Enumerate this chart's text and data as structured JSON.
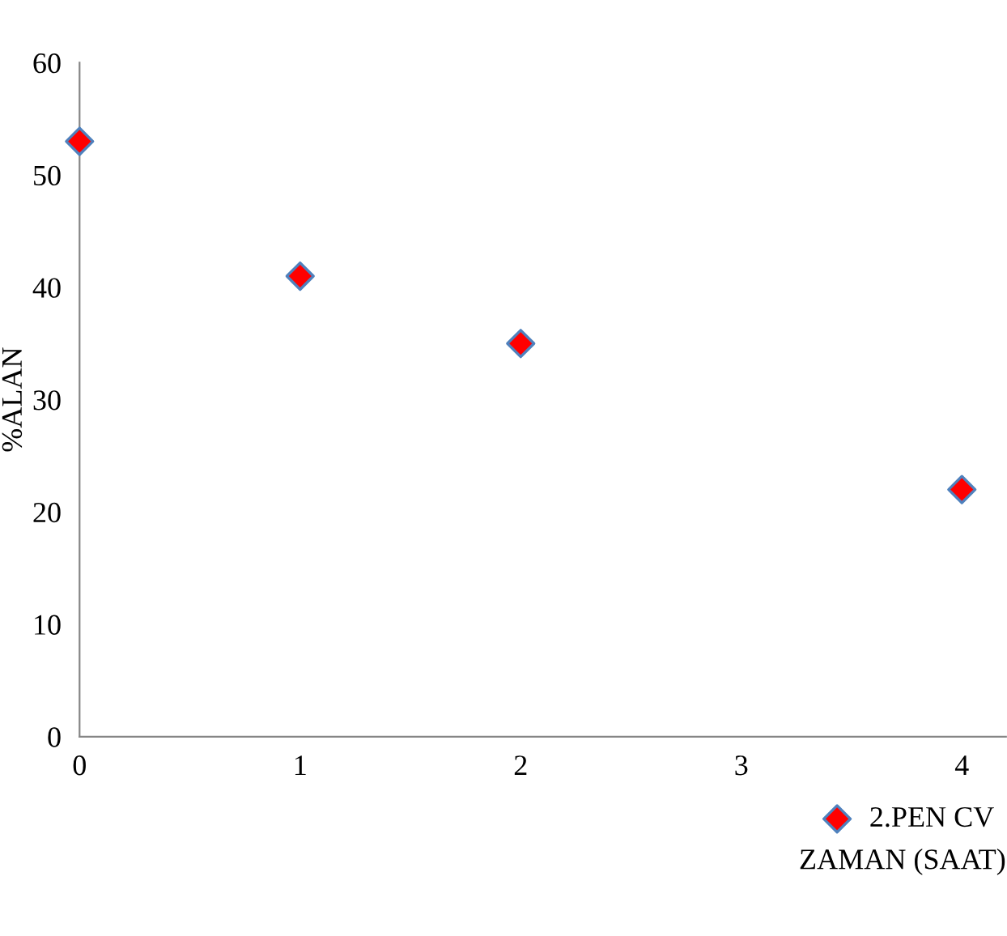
{
  "chart_data": {
    "type": "scatter",
    "xlabel": "ZAMAN (SAAT)",
    "ylabel": "%ALAN",
    "x": [
      0,
      1,
      2,
      4
    ],
    "series": [
      {
        "name": "2.PEN CV",
        "color": "#ff0000",
        "values": [
          53,
          41,
          35,
          22
        ]
      }
    ],
    "xlim": [
      0,
      4.2
    ],
    "ylim": [
      0,
      60
    ],
    "xticks": [
      0,
      1,
      2,
      3,
      4
    ],
    "yticks": [
      0,
      10,
      20,
      30,
      40,
      50,
      60
    ],
    "marker": "diamond",
    "legend": "bottom",
    "grid": false
  }
}
